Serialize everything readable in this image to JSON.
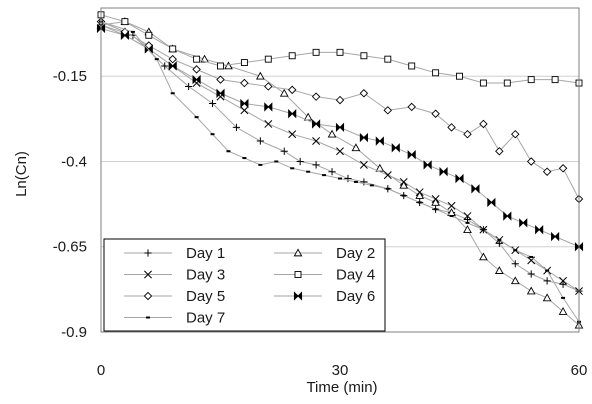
{
  "chart_data": {
    "type": "line",
    "title": "",
    "xlabel": "Time (min)",
    "ylabel": "Ln(Cn)",
    "xlim": [
      0,
      60
    ],
    "ylim": [
      -0.9,
      0.05
    ],
    "x_ticks": [
      0,
      30,
      60
    ],
    "y_ticks": [
      -0.15,
      -0.4,
      -0.65,
      -0.9
    ],
    "x_tick_labels": [
      "0",
      "30",
      "60"
    ],
    "y_tick_labels": [
      "-0.15",
      "-0.4",
      "-0.65",
      "-0.9"
    ],
    "grid": "horizontal",
    "legend_position": "bottom-left",
    "series": [
      {
        "name": "Day 1",
        "marker": "plus",
        "color": "#000000",
        "x": [
          0,
          4,
          8,
          11,
          14,
          17,
          20,
          23,
          25,
          27,
          29,
          31,
          33,
          36,
          38,
          40,
          42,
          44,
          46,
          48,
          50,
          52,
          54,
          56,
          58,
          60
        ],
        "y": [
          0.0,
          -0.03,
          -0.12,
          -0.18,
          -0.23,
          -0.3,
          -0.34,
          -0.37,
          -0.4,
          -0.41,
          -0.43,
          -0.45,
          -0.46,
          -0.48,
          -0.5,
          -0.52,
          -0.54,
          -0.55,
          -0.57,
          -0.6,
          -0.64,
          -0.7,
          -0.73,
          -0.75,
          -0.76,
          -0.78
        ]
      },
      {
        "name": "Day 2",
        "marker": "triangle",
        "color": "#000000",
        "x": [
          0,
          3,
          6,
          9,
          13,
          16,
          20,
          23,
          26,
          29,
          32,
          35,
          38,
          40,
          42,
          44,
          46,
          48,
          50,
          52,
          54,
          56,
          58,
          60
        ],
        "y": [
          0.0,
          0.01,
          -0.02,
          -0.07,
          -0.1,
          -0.12,
          -0.15,
          -0.2,
          -0.27,
          -0.32,
          -0.36,
          -0.42,
          -0.47,
          -0.5,
          -0.52,
          -0.55,
          -0.6,
          -0.68,
          -0.72,
          -0.75,
          -0.78,
          -0.8,
          -0.84,
          -0.88
        ]
      },
      {
        "name": "Day 3",
        "marker": "x",
        "color": "#000000",
        "x": [
          0,
          3,
          6,
          9,
          12,
          15,
          18,
          21,
          24,
          27,
          30,
          33,
          36,
          38,
          40,
          42,
          44,
          46,
          48,
          50,
          52,
          54,
          56,
          58,
          60
        ],
        "y": [
          0.0,
          -0.03,
          -0.07,
          -0.12,
          -0.17,
          -0.21,
          -0.25,
          -0.29,
          -0.32,
          -0.34,
          -0.37,
          -0.41,
          -0.44,
          -0.46,
          -0.49,
          -0.51,
          -0.53,
          -0.56,
          -0.6,
          -0.63,
          -0.66,
          -0.69,
          -0.72,
          -0.75,
          -0.78
        ]
      },
      {
        "name": "Day 4",
        "marker": "square",
        "color": "#000000",
        "x": [
          0,
          3,
          6,
          9,
          12,
          15,
          18,
          21,
          24,
          27,
          30,
          33,
          36,
          39,
          42,
          45,
          48,
          51,
          54,
          57,
          60
        ],
        "y": [
          0.03,
          0.01,
          -0.03,
          -0.07,
          -0.1,
          -0.12,
          -0.11,
          -0.1,
          -0.09,
          -0.08,
          -0.08,
          -0.09,
          -0.1,
          -0.12,
          -0.14,
          -0.15,
          -0.17,
          -0.17,
          -0.16,
          -0.16,
          -0.17
        ]
      },
      {
        "name": "Day 5",
        "marker": "diamond",
        "color": "#000000",
        "x": [
          0,
          3,
          6,
          9,
          12,
          15,
          18,
          21,
          24,
          27,
          30,
          33,
          36,
          39,
          42,
          44,
          46,
          48,
          50,
          52,
          54,
          56,
          58,
          60
        ],
        "y": [
          0.01,
          -0.02,
          -0.06,
          -0.1,
          -0.13,
          -0.16,
          -0.17,
          -0.18,
          -0.19,
          -0.21,
          -0.22,
          -0.2,
          -0.25,
          -0.24,
          -0.26,
          -0.3,
          -0.32,
          -0.29,
          -0.37,
          -0.32,
          -0.4,
          -0.43,
          -0.42,
          -0.51
        ]
      },
      {
        "name": "Day 6",
        "marker": "bowtie",
        "color": "#000000",
        "x": [
          0,
          3,
          6,
          9,
          12,
          15,
          18,
          21,
          24,
          27,
          30,
          33,
          35,
          37,
          39,
          41,
          43,
          45,
          47,
          49,
          51,
          53,
          55,
          57,
          60
        ],
        "y": [
          -0.01,
          -0.03,
          -0.07,
          -0.12,
          -0.16,
          -0.2,
          -0.23,
          -0.24,
          -0.26,
          -0.29,
          -0.3,
          -0.33,
          -0.34,
          -0.36,
          -0.38,
          -0.41,
          -0.43,
          -0.45,
          -0.48,
          -0.52,
          -0.56,
          -0.58,
          -0.6,
          -0.62,
          -0.65
        ]
      },
      {
        "name": "Day 7",
        "marker": "dash",
        "color": "#000000",
        "x": [
          0,
          4,
          7,
          9,
          12,
          14,
          16,
          18,
          20,
          22,
          24,
          26,
          28,
          30,
          32,
          34,
          36,
          38,
          40,
          42,
          44,
          46,
          48,
          50,
          52,
          54,
          56,
          58,
          60
        ],
        "y": [
          0.01,
          -0.02,
          -0.1,
          -0.2,
          -0.27,
          -0.32,
          -0.37,
          -0.39,
          -0.41,
          -0.4,
          -0.42,
          -0.43,
          -0.44,
          -0.45,
          -0.46,
          -0.47,
          -0.48,
          -0.5,
          -0.52,
          -0.54,
          -0.56,
          -0.58,
          -0.6,
          -0.63,
          -0.66,
          -0.68,
          -0.72,
          -0.8,
          -0.87
        ]
      }
    ]
  }
}
